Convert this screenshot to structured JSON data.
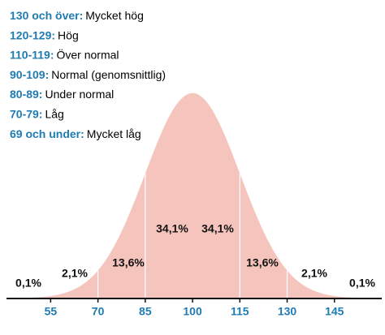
{
  "scale": [
    {
      "range": "130 och över:",
      "label": "Mycket hög"
    },
    {
      "range": "120-129:",
      "label": "Hög"
    },
    {
      "range": "110-119:",
      "label": "Över normal"
    },
    {
      "range": "90-109:",
      "label": "Normal (genomsnittlig)"
    },
    {
      "range": "80-89:",
      "label": "Under normal"
    },
    {
      "range": "70-79:",
      "label": "Låg"
    },
    {
      "range": "69 och under:",
      "label": "Mycket låg"
    }
  ],
  "chart_data": {
    "type": "bell",
    "color": "#f5c5bd",
    "xlim": [
      41,
      160
    ],
    "xticks": [
      55,
      70,
      85,
      100,
      115,
      130,
      145
    ],
    "values": [
      0.1,
      2.1,
      13.6,
      34.1,
      34.1,
      13.6,
      2.1,
      0.1
    ],
    "value_labels": [
      "0,1%",
      "2,1%",
      "13,6%",
      "34,1%",
      "34,1%",
      "13,6%",
      "2,1%",
      "0,1%"
    ]
  }
}
